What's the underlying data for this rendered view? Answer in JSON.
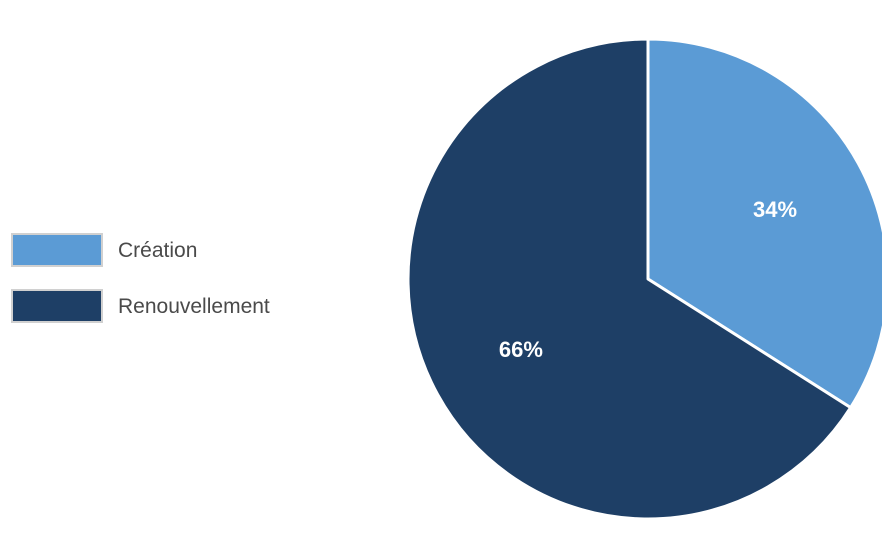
{
  "chart_data": {
    "type": "pie",
    "slices": [
      {
        "label": "Création",
        "value": 34,
        "display": "34%",
        "color": "#5b9bd5"
      },
      {
        "label": "Renouvellement",
        "value": 66,
        "display": "66%",
        "color": "#1e3f66"
      }
    ],
    "legend_position": "left",
    "slice_border_color": "#ffffff",
    "label_color": "#ffffff"
  }
}
